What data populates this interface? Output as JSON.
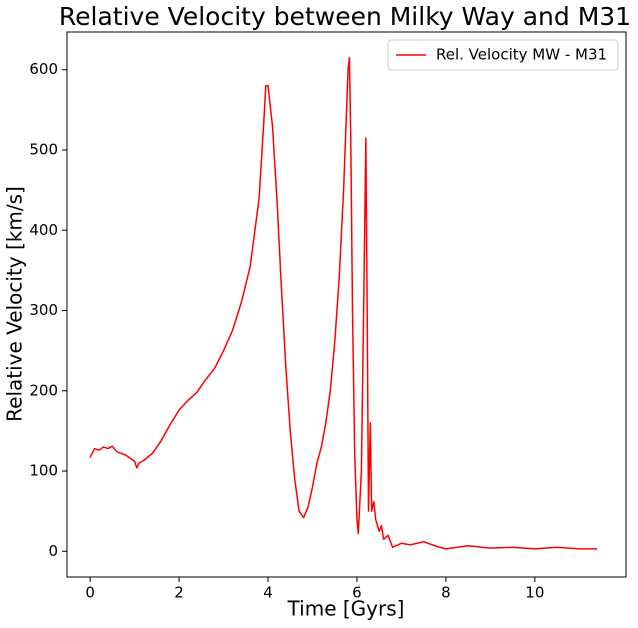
{
  "chart_data": {
    "type": "line",
    "title": "Relative Velocity between Milky Way and M31",
    "x_label": "Time [Gyrs]",
    "y_label": "Relative Velocity [km/s]",
    "x": [
      0,
      0.1,
      0.2,
      0.3,
      0.4,
      0.5,
      0.6,
      0.8,
      0.9,
      1.0,
      1.05,
      1.1,
      1.2,
      1.4,
      1.6,
      1.8,
      2.0,
      2.2,
      2.4,
      2.6,
      2.8,
      3.0,
      3.2,
      3.4,
      3.6,
      3.8,
      3.9,
      3.95,
      4.0,
      4.1,
      4.2,
      4.3,
      4.4,
      4.5,
      4.6,
      4.7,
      4.8,
      4.9,
      5.0,
      5.1,
      5.2,
      5.3,
      5.4,
      5.5,
      5.6,
      5.7,
      5.8,
      5.83,
      5.86,
      5.9,
      5.95,
      6.0,
      6.03,
      6.1,
      6.15,
      6.2,
      6.23,
      6.26,
      6.3,
      6.33,
      6.38,
      6.42,
      6.5,
      6.55,
      6.6,
      6.7,
      6.8,
      7.0,
      7.2,
      7.5,
      7.8,
      8.0,
      8.5,
      9.0,
      9.5,
      10.0,
      10.5,
      11.0,
      11.4
    ],
    "series": [
      {
        "name": "Rel. Velocity MW - M31",
        "color": "#ff0000",
        "values": [
          117,
          128,
          126,
          130,
          128,
          131,
          124,
          120,
          116,
          112,
          104,
          110,
          113,
          122,
          138,
          158,
          176,
          188,
          198,
          214,
          228,
          250,
          275,
          310,
          355,
          440,
          530,
          580,
          580,
          530,
          440,
          330,
          230,
          150,
          90,
          50,
          42,
          55,
          80,
          110,
          130,
          160,
          200,
          260,
          340,
          450,
          600,
          615,
          520,
          300,
          120,
          40,
          22,
          100,
          300,
          515,
          300,
          50,
          160,
          50,
          62,
          40,
          25,
          32,
          15,
          20,
          5,
          10,
          8,
          12,
          6,
          3,
          7,
          4,
          5,
          3,
          5,
          3,
          3
        ]
      }
    ],
    "xlim": [
      -0.52,
      12.05
    ],
    "ylim": [
      -32,
      647
    ],
    "xticks": [
      0,
      2,
      4,
      6,
      8,
      10
    ],
    "yticks": [
      0,
      100,
      200,
      300,
      400,
      500,
      600
    ],
    "legend": "upper right"
  }
}
